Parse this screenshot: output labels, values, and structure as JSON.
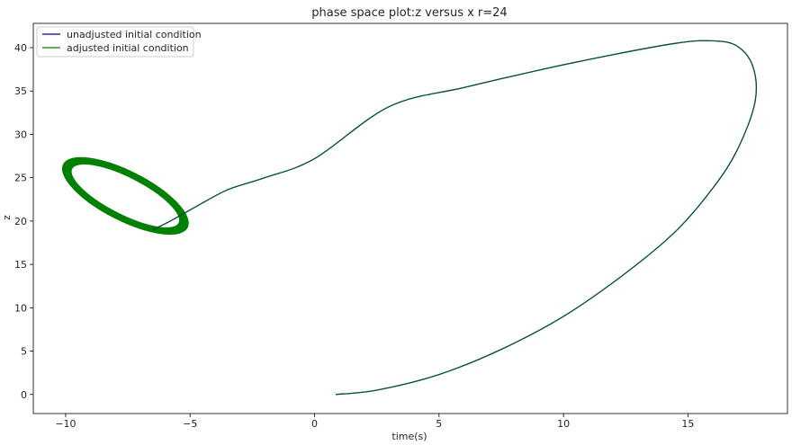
{
  "chart_data": {
    "type": "line",
    "title": "phase space plot:z versus x r=24",
    "xlabel": "time(s)",
    "ylabel": "z",
    "xlim": [
      -11.3,
      19.0
    ],
    "ylim": [
      -2.2,
      42.8
    ],
    "xticks": [
      -10,
      -5,
      0,
      5,
      10,
      15
    ],
    "yticks": [
      0,
      5,
      10,
      15,
      20,
      25,
      30,
      35,
      40
    ],
    "xtick_labels": [
      "−10",
      "−5",
      "0",
      "5",
      "10",
      "15"
    ],
    "ytick_labels": [
      "0",
      "5",
      "10",
      "15",
      "20",
      "25",
      "30",
      "35",
      "40"
    ],
    "grid": false,
    "legend_position": "top-left",
    "series": [
      {
        "name": "unadjusted initial condition",
        "color": "#00008b",
        "points": [
          [
            0.85,
            0.0
          ],
          [
            2.5,
            0.5
          ],
          [
            5.0,
            2.3
          ],
          [
            7.5,
            5.2
          ],
          [
            10.0,
            9.0
          ],
          [
            12.5,
            14.0
          ],
          [
            14.5,
            18.8
          ],
          [
            16.0,
            23.8
          ],
          [
            17.0,
            28.3
          ],
          [
            17.7,
            33.8
          ],
          [
            17.6,
            37.9
          ],
          [
            16.9,
            40.3
          ],
          [
            15.8,
            40.8
          ],
          [
            14.5,
            40.5
          ],
          [
            12.0,
            39.2
          ],
          [
            9.0,
            37.4
          ],
          [
            6.0,
            35.4
          ],
          [
            3.0,
            33.2
          ],
          [
            0.0,
            27.2
          ],
          [
            -2.0,
            25.0
          ],
          [
            -3.5,
            23.6
          ],
          [
            -4.8,
            21.6
          ],
          [
            -5.8,
            20.0
          ],
          [
            -6.5,
            19.0
          ]
        ]
      },
      {
        "name": "adjusted initial condition",
        "color": "#008000",
        "points": [
          [
            0.85,
            0.0
          ],
          [
            2.5,
            0.5
          ],
          [
            5.0,
            2.3
          ],
          [
            7.5,
            5.2
          ],
          [
            10.0,
            9.0
          ],
          [
            12.5,
            14.0
          ],
          [
            14.5,
            18.8
          ],
          [
            16.0,
            23.8
          ],
          [
            17.0,
            28.3
          ],
          [
            17.7,
            33.8
          ],
          [
            17.6,
            37.9
          ],
          [
            16.9,
            40.3
          ],
          [
            15.8,
            40.8
          ],
          [
            14.5,
            40.5
          ],
          [
            12.0,
            39.2
          ],
          [
            9.0,
            37.4
          ],
          [
            6.0,
            35.4
          ],
          [
            3.0,
            33.2
          ],
          [
            0.0,
            27.2
          ],
          [
            -2.0,
            25.0
          ],
          [
            -3.5,
            23.6
          ],
          [
            -4.8,
            21.6
          ],
          [
            -5.8,
            20.0
          ],
          [
            -6.5,
            19.0
          ]
        ],
        "limit_cycle": {
          "center": [
            -7.6,
            22.9
          ],
          "x_range": [
            -10.0,
            -5.3
          ],
          "z_range": [
            19.0,
            26.8
          ]
        }
      }
    ]
  }
}
